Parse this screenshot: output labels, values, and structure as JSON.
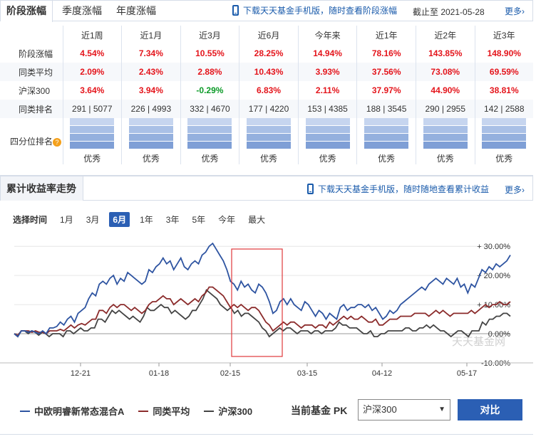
{
  "tabs": [
    {
      "label": "阶段涨幅",
      "active": true
    },
    {
      "label": "季度涨幅",
      "active": false
    },
    {
      "label": "年度涨幅",
      "active": false
    }
  ],
  "download_top": "下载天天基金手机版，随时查看阶段涨幅",
  "as_of": "截止至  2021-05-28",
  "more": "更多",
  "table": {
    "columns": [
      "近1周",
      "近1月",
      "近3月",
      "近6月",
      "今年来",
      "近1年",
      "近2年",
      "近3年"
    ],
    "rows": [
      {
        "label": "阶段涨幅",
        "values": [
          "4.54%",
          "7.34%",
          "10.55%",
          "28.25%",
          "14.94%",
          "78.16%",
          "143.85%",
          "148.90%"
        ],
        "tones": [
          "red",
          "red",
          "red",
          "red",
          "red",
          "red",
          "red",
          "red"
        ]
      },
      {
        "label": "同类平均",
        "values": [
          "2.09%",
          "2.43%",
          "2.88%",
          "10.43%",
          "3.93%",
          "37.56%",
          "73.08%",
          "69.59%"
        ],
        "tones": [
          "red",
          "red",
          "red",
          "red",
          "red",
          "red",
          "red",
          "red"
        ]
      },
      {
        "label": "沪深300",
        "values": [
          "3.64%",
          "3.94%",
          "-0.29%",
          "6.83%",
          "2.11%",
          "37.97%",
          "44.90%",
          "38.81%"
        ],
        "tones": [
          "red",
          "red",
          "green",
          "red",
          "red",
          "red",
          "red",
          "red"
        ]
      },
      {
        "label": "同类排名",
        "values": [
          "291 | 5077",
          "226 | 4993",
          "332 | 4670",
          "177 | 4220",
          "153 | 4385",
          "188 | 3545",
          "290 | 2955",
          "142 | 2588"
        ],
        "tones": [
          "plain",
          "plain",
          "plain",
          "plain",
          "plain",
          "plain",
          "plain",
          "plain"
        ]
      }
    ],
    "quartile_label": "四分位排名",
    "quartile_help_icon": "question-icon",
    "quartiles": [
      "优秀",
      "优秀",
      "优秀",
      "优秀",
      "优秀",
      "优秀",
      "优秀",
      "优秀"
    ],
    "quartile_level": 4,
    "quartile_color_filled": "#86a6d9",
    "quartile_color_empty": "#e3eaf6"
  },
  "section2": {
    "title": "累计收益率走势",
    "download": "下载天天基金手机版，随时随地查看累计收益",
    "more": "更多"
  },
  "range": {
    "label": "选择时间",
    "options": [
      "1月",
      "3月",
      "6月",
      "1年",
      "3年",
      "5年",
      "今年",
      "最大"
    ],
    "selected": "6月"
  },
  "chart_data": {
    "type": "line",
    "x_ticks": [
      "12-21",
      "01-18",
      "02-15",
      "03-15",
      "04-12",
      "05-17"
    ],
    "y_ticks": [
      "+ 30.00%",
      "+ 20.00%",
      "+ 10.00%",
      "0.00%",
      "-10.00%"
    ],
    "ylim": [
      -10,
      32
    ],
    "watermark": "天天基金网",
    "series": [
      {
        "name": "中欧明睿新常态混合A",
        "color": "#2e54a1",
        "values": [
          0,
          -1,
          1,
          1,
          0.5,
          1,
          0.5,
          0,
          1,
          0,
          2,
          2,
          2.5,
          4,
          3,
          5,
          6,
          4,
          7,
          8,
          9,
          12,
          14,
          13,
          17,
          18,
          17,
          19,
          20,
          17,
          19,
          18,
          21,
          20,
          19,
          18,
          17,
          18,
          22,
          21,
          23,
          24,
          26,
          24,
          25,
          22,
          24,
          26,
          23,
          22,
          24,
          25,
          24,
          27,
          28,
          30,
          31,
          29,
          27,
          25,
          22,
          18,
          17,
          15,
          18,
          16,
          17,
          15,
          14,
          17,
          16,
          14,
          11,
          7,
          8,
          11,
          12,
          10,
          12,
          10,
          9,
          8,
          11,
          10,
          8,
          6,
          8,
          7,
          5,
          7,
          6,
          5,
          9,
          10,
          8,
          9,
          9,
          10,
          10,
          9,
          10,
          8,
          9,
          7,
          5,
          6,
          8,
          7,
          8,
          10,
          11,
          12,
          13,
          14,
          15,
          16,
          15,
          17,
          18,
          19,
          18,
          17,
          19,
          18,
          17,
          19,
          16,
          17,
          14,
          17,
          16,
          19,
          22,
          21,
          23,
          22,
          24,
          23,
          24,
          25,
          27
        ]
      },
      {
        "name": "同类平均",
        "color": "#8b2b2b",
        "values": [
          0,
          -0.5,
          1,
          1,
          1,
          0.5,
          1,
          0.5,
          0.5,
          0,
          1,
          1,
          1,
          1.5,
          1,
          2,
          3,
          2,
          3,
          3.5,
          3,
          4,
          5,
          5,
          8,
          8,
          7,
          9,
          10,
          9,
          10,
          10,
          9,
          8,
          9,
          8,
          7,
          8,
          10,
          11,
          11,
          12,
          13,
          12,
          12,
          10,
          11,
          12,
          11,
          10,
          11,
          12,
          11,
          13,
          14,
          16,
          16,
          15,
          14,
          13,
          11,
          9,
          10,
          9,
          10,
          9,
          8,
          9,
          9,
          8,
          6,
          4,
          3,
          1,
          2,
          3,
          4,
          3,
          4,
          4,
          3,
          2,
          3,
          3,
          3,
          2,
          3,
          3,
          2,
          4,
          3,
          4,
          5,
          6,
          5,
          6,
          5,
          5,
          6,
          5,
          4,
          4,
          5,
          3,
          3,
          4,
          5,
          5,
          5,
          6,
          6,
          6,
          6,
          7,
          7,
          7,
          7,
          6,
          7,
          8,
          7,
          8,
          7,
          6,
          7,
          7,
          7,
          7,
          7,
          8,
          7,
          8,
          9,
          10,
          9,
          10,
          10,
          11,
          10,
          10,
          11
        ]
      },
      {
        "name": "沪深300",
        "color": "#444444",
        "values": [
          0,
          -1,
          1,
          1,
          0,
          1,
          0.5,
          -0.5,
          0.5,
          0,
          -1,
          0,
          0,
          0,
          -1,
          1,
          1,
          0,
          1,
          2,
          1,
          1,
          2,
          2,
          5,
          5,
          4,
          6,
          8,
          7,
          8,
          7,
          6,
          5,
          6,
          5,
          4,
          6,
          9,
          8,
          8,
          9,
          10,
          9,
          9,
          7,
          8,
          7,
          6,
          5,
          6,
          8,
          8,
          10,
          12,
          15,
          14,
          13,
          12,
          10,
          9,
          8,
          9,
          7,
          8,
          6,
          7,
          7,
          6,
          5,
          4,
          2,
          1,
          -1,
          0,
          1,
          2,
          1,
          2,
          2,
          1,
          0,
          1,
          1,
          1,
          0,
          1,
          1,
          0,
          1,
          1,
          1,
          2,
          4,
          3,
          3,
          2,
          2,
          2,
          1,
          0,
          0,
          1,
          -1,
          -1,
          0,
          0,
          1,
          1,
          1,
          1,
          1,
          2,
          2,
          1,
          1,
          2,
          2,
          3,
          2,
          3,
          2,
          1,
          1,
          0,
          -1,
          0,
          1,
          1,
          0,
          -1,
          1,
          1,
          1,
          4,
          3,
          5,
          5,
          6,
          6,
          7,
          7,
          6
        ]
      }
    ]
  },
  "legend": [
    "中欧明睿新常态混合A",
    "同类平均",
    "沪深300"
  ],
  "pk": {
    "label": "当前基金  PK",
    "selected": "沪深300",
    "button": "对比"
  },
  "colors": {
    "accent": "#2b5fb4",
    "red": "#e4141b",
    "green": "#0b9a27",
    "highlight_box": "#e0383b"
  }
}
